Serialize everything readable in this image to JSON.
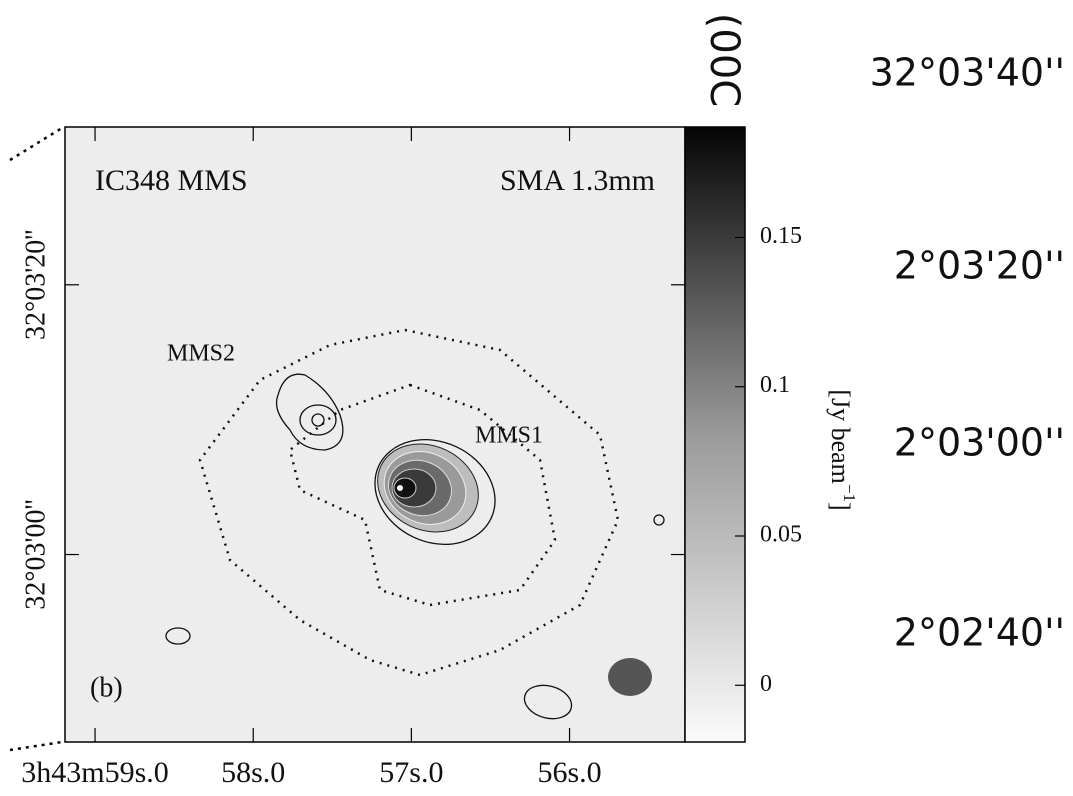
{
  "chart_data": {
    "type": "contour",
    "panel_label": "(b)",
    "annotations": [
      "IC348 MMS",
      "SMA 1.3mm",
      "MMS2",
      "MMS1"
    ],
    "xlim": [
      59.19,
      55.27
    ],
    "xticks": [
      {
        "value": 59,
        "label": "3h43m59s.0"
      },
      {
        "value": 58,
        "label": "58s.0"
      },
      {
        "value": 57,
        "label": "57s.0"
      },
      {
        "value": 56,
        "label": "56s.0"
      }
    ],
    "ylim": [
      -13.9,
      31.7
    ],
    "yticks": [
      {
        "value": 20,
        "label": "32°03'20''"
      },
      {
        "value": 0,
        "label": "32°03'00''"
      }
    ],
    "colorbar": {
      "lim": [
        -0.019,
        0.187
      ],
      "ticks": [
        0,
        0.05,
        0.1,
        0.15
      ],
      "label_parts": [
        "[Jy beam",
        "−1",
        "]"
      ]
    },
    "cropped_labels": [
      "(00C",
      "32°03'40''",
      "2°03'20''",
      "2°03'00''",
      "2°02'40''"
    ]
  }
}
